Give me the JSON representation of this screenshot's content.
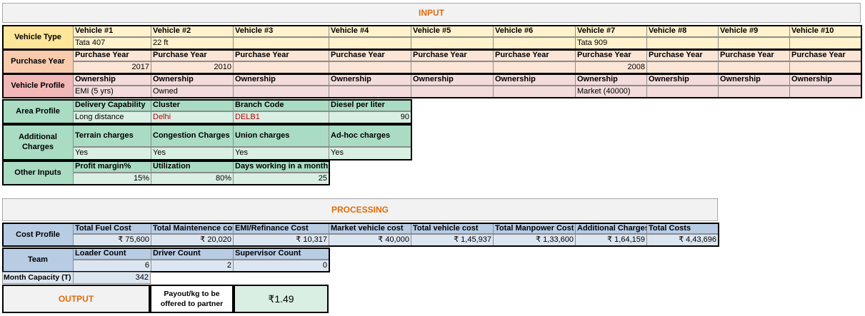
{
  "input": {
    "title": "INPUT",
    "vehicle_type": {
      "label": "Vehicle Type",
      "headers": [
        "Vehicle #1",
        "Vehicle #2",
        "Vehicle #3",
        "Vehicle #4",
        "Vehicle #5",
        "Vehicle #6",
        "Vehicle #7",
        "Vehicle #8",
        "Vehicle #9",
        "Vehicle #10"
      ],
      "values": [
        "Tata 407",
        "22 ft",
        "",
        "",
        "",
        "",
        "Tata 909",
        "",
        "",
        ""
      ]
    },
    "purchase_year": {
      "label": "Purchase Year",
      "headers": [
        "Purchase Year",
        "Purchase Year",
        "Purchase Year",
        "Purchase Year",
        "Purchase Year",
        "Purchase Year",
        "Purchase Year",
        "Purchase Year",
        "Purchase Year",
        "Purchase Year"
      ],
      "values": [
        "2017",
        "2010",
        "",
        "",
        "",
        "",
        "2008",
        "",
        "",
        ""
      ]
    },
    "vehicle_profile": {
      "label": "Vehicle Profile",
      "headers": [
        "Ownership",
        "Ownership",
        "Ownership",
        "Ownership",
        "Ownership",
        "Ownership",
        "Ownership",
        "Ownership",
        "Ownership",
        "Ownership"
      ],
      "values": [
        "EMI (5 yrs)",
        "Owned",
        "",
        "",
        "",
        "",
        "Market (40000)",
        "",
        "",
        ""
      ]
    },
    "area_profile": {
      "label": "Area Profile",
      "headers": [
        "Delivery Capability",
        "Cluster",
        "Branch Code",
        "Diesel per liter"
      ],
      "values": [
        "Long distance",
        "Delhi",
        "DELB1",
        "90"
      ]
    },
    "additional_charges": {
      "label": "Additional Charges",
      "headers": [
        "Terrain charges",
        "Congestion Charges",
        "Union charges",
        "Ad-hoc charges"
      ],
      "values": [
        "Yes",
        "Yes",
        "Yes",
        "Yes"
      ]
    },
    "other_inputs": {
      "label": "Other Inputs",
      "headers": [
        "Profit margin%",
        "Utilization",
        "Days working in a month"
      ],
      "values": [
        "15%",
        "80%",
        "25"
      ]
    }
  },
  "processing": {
    "title": "PROCESSING",
    "cost_profile": {
      "label": "Cost Profile",
      "headers": [
        "Total Fuel Cost",
        "Total Maintenence cos",
        "EMI/Refinance Cost",
        "Market vehicle cost",
        "Total vehicle cost",
        "Total Manpower Cost",
        "Additional Charges",
        "Total Costs"
      ],
      "values": [
        "₹ 75,600",
        "₹ 20,020",
        "₹ 10,317",
        "₹ 40,000",
        "₹ 1,45,937",
        "₹ 1,33,600",
        "₹ 1,64,159",
        "₹ 4,43,696"
      ]
    },
    "team": {
      "label": "Team",
      "headers": [
        "Loader Count",
        "Driver Count",
        "Supervisor Count"
      ],
      "values": [
        "6",
        "2",
        "0"
      ]
    },
    "month_capacity": {
      "label": "Month Capacity (T)",
      "value": "342"
    }
  },
  "output": {
    "label": "OUTPUT",
    "payout_label": "Payout/kg to be offered to partner",
    "payout_value": "₹1.49"
  },
  "colors": {
    "accent_orange": "#e36c09",
    "red_text": "#c00000"
  }
}
